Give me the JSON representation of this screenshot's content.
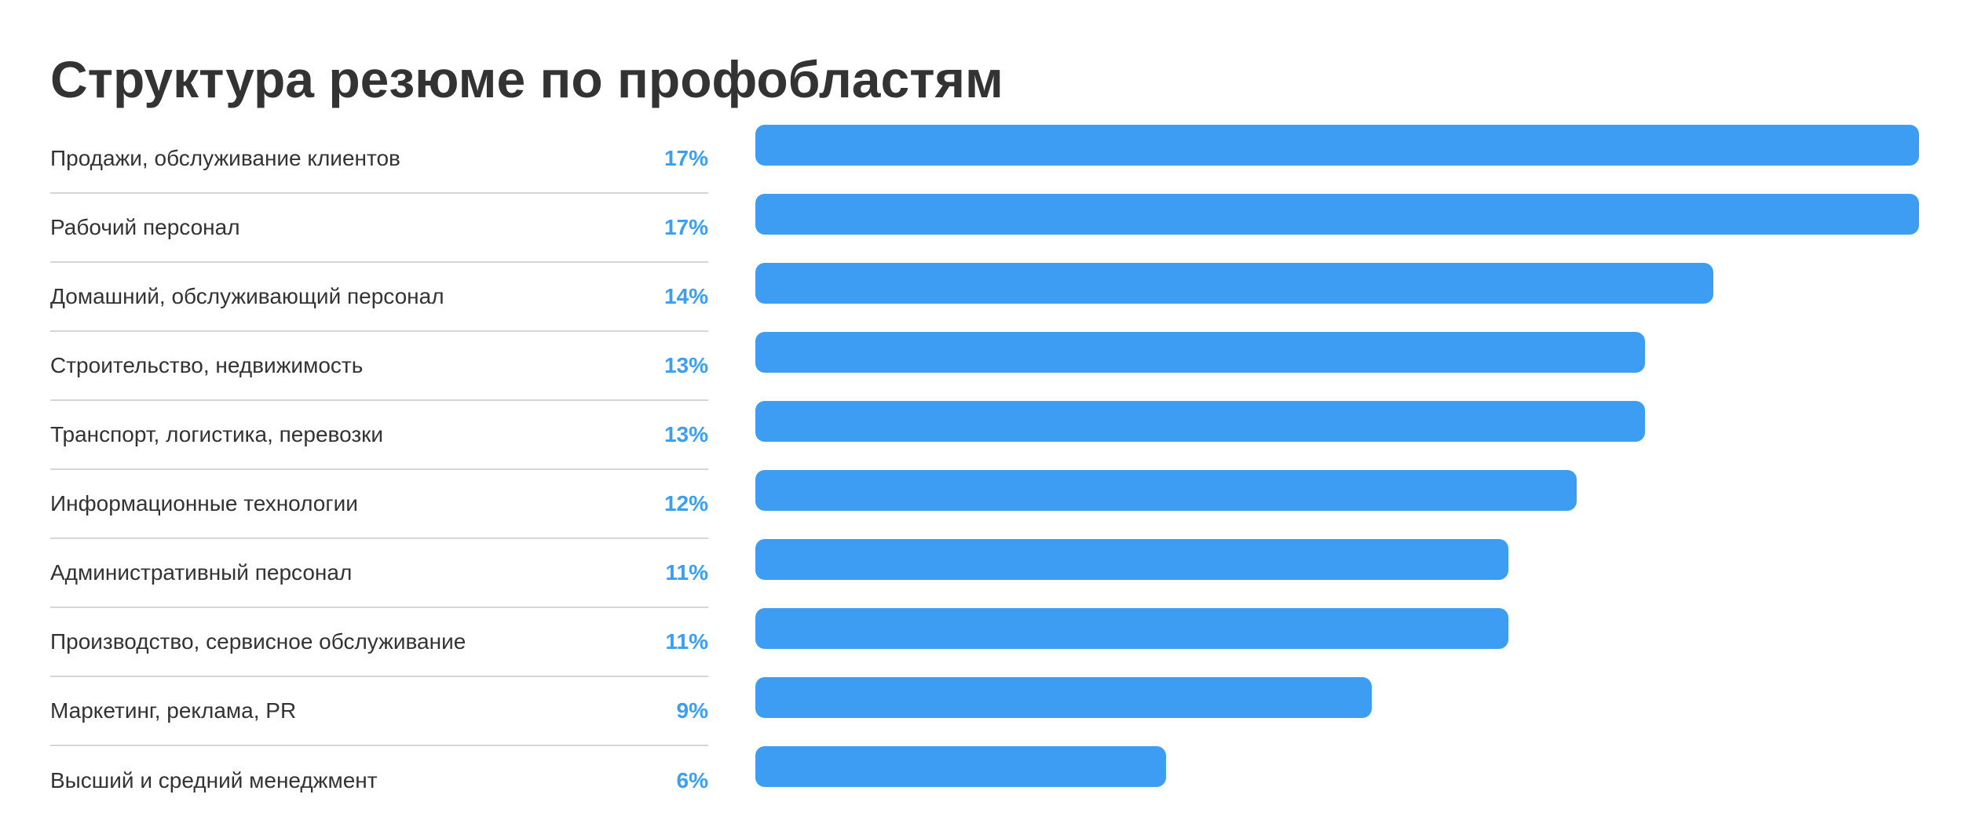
{
  "title": "Структура резюме по профобластям",
  "colors": {
    "bar": "#3d9df3",
    "value_text": "#3d9ff1",
    "label_text": "#333333",
    "divider": "#d5d5d5"
  },
  "chart_data": {
    "type": "bar",
    "orientation": "horizontal",
    "title": "Структура резюме по профобластям",
    "value_unit": "%",
    "xlim": [
      0,
      17
    ],
    "categories": [
      "Продажи, обслуживание клиентов",
      "Рабочий персонал",
      "Домашний, обслуживающий персонал",
      "Строительство, недвижимость",
      "Транспорт, логистика, перевозки",
      "Информационные технологии",
      "Административный персонал",
      "Производство, сервисное обслуживание",
      "Маркетинг, реклама, PR",
      "Высший и средний менеджмент"
    ],
    "values": [
      17,
      17,
      14,
      13,
      13,
      12,
      11,
      11,
      9,
      6
    ],
    "value_labels": [
      "17%",
      "17%",
      "14%",
      "13%",
      "13%",
      "12%",
      "11%",
      "11%",
      "9%",
      "6%"
    ]
  }
}
